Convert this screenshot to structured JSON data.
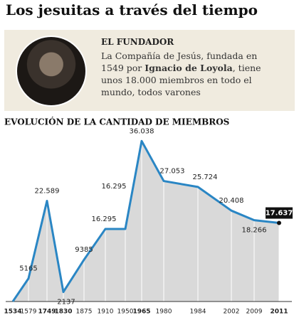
{
  "header": {
    "title": "Los jesuitas a través del tiempo"
  },
  "founder": {
    "heading": "EL FUNDADOR",
    "text_before": "La Compañía de Jesús, fundada en 1549 por",
    "name": "Ignacio de Loyola",
    "text_after": ", tiene unos 18.000 miembros en todo el mundo, todos varones"
  },
  "chart_data": {
    "type": "area",
    "title": "EVOLUCIÓN DE LA CANTIDAD DE MIEMBROS",
    "categories": [
      "1534",
      "1579",
      "1749",
      "1830",
      "1875",
      "1910",
      "1950",
      "1965",
      "1980",
      "1984",
      "2002",
      "2009",
      "2011"
    ],
    "values": [
      10,
      5165,
      22589,
      2137,
      9385,
      16295,
      16295,
      36038,
      27053,
      25724,
      20408,
      18266,
      17637
    ],
    "value_labels": [
      null,
      "5165",
      "22.589",
      "2137",
      "9385",
      "16.295",
      "16.295",
      "36.038",
      "27.053",
      "25.724",
      "20.408",
      "18.266",
      "17.637"
    ],
    "color": "#2a86c4",
    "fill": "#d9d9d9",
    "ylim": [
      0,
      38000
    ],
    "grid": true
  }
}
